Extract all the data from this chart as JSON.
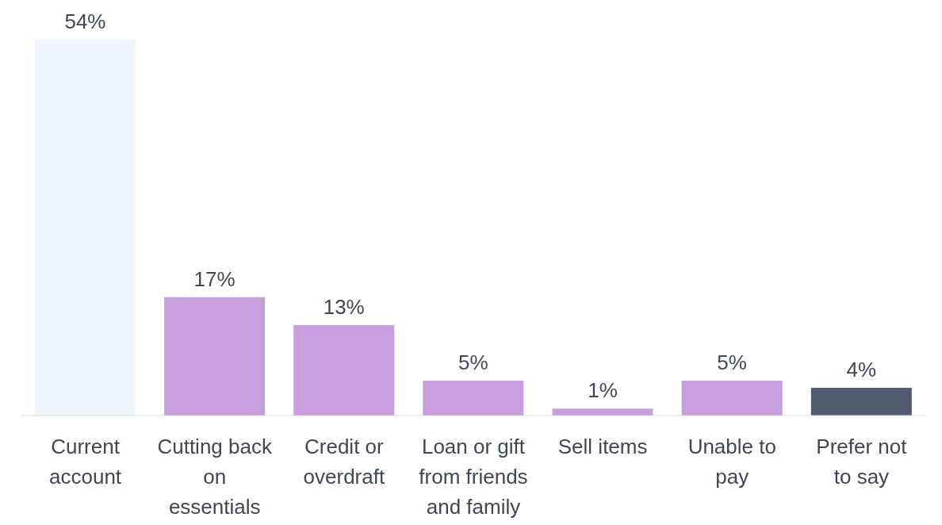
{
  "chart_data": {
    "type": "bar",
    "categories": [
      "Current account",
      "Cutting back on essentials",
      "Credit or overdraft",
      "Loan or gift from friends and family",
      "Sell items",
      "Unable to pay",
      "Prefer not to say"
    ],
    "values": [
      54,
      17,
      13,
      5,
      1,
      5,
      4
    ],
    "value_labels": [
      "54%",
      "17%",
      "13%",
      "5%",
      "1%",
      "5%",
      "4%"
    ],
    "colors": [
      "#eff5fd",
      "#c79fdc",
      "#c79fdc",
      "#c79fdc",
      "#c79fdc",
      "#c79fdc",
      "#525a70"
    ]
  }
}
